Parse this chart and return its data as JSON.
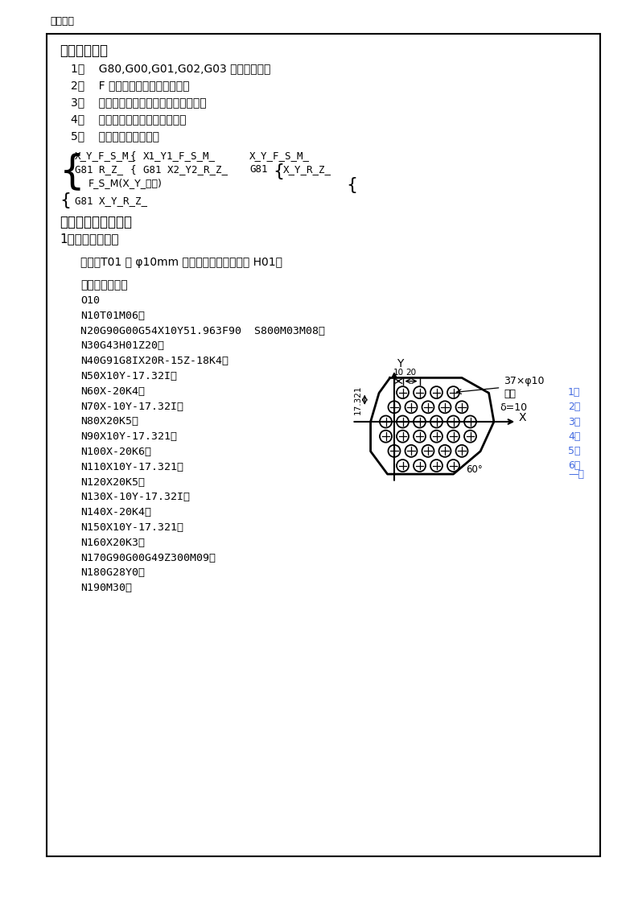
{
  "page_bg": "#ffffff",
  "border_color": "#000000",
  "text_color": "#000000",
  "blue_color": "#4169E1",
  "watermark": "欢迎阅读",
  "sec4_title": "四、注意事项",
  "items": [
    "1、    G80,G00,G01,G02,G03 取消固定循环",
    "2、    F 取消了固定循环也保留下来",
    "3、    主轴动作要事先明确，必须使转起来",
    "4、    加工电子仪时，倍率开关无效",
    "5、    第一个钻孔的加工："
  ],
  "sec5_title": "五、相关实践知识：",
  "sub1": "1、正确装夹工件",
  "tool_line": "刀具：T01 为 φ10mm 的钻头，长度补偿号为 H01。",
  "prog_intro": "程序编写如下：",
  "prog": [
    "O10",
    "N10T01M06；",
    "N20G90G00G54X10Y51.963F90  S800M03M08；",
    "N30G43H01Z20；",
    "N40G91G8IX20R-15Z-18K4；",
    "N50X10Y-17.32I；",
    "N60X-20K4；",
    "N70X-10Y-17.32I；",
    "N80X20K5；",
    "N90X10Y-17.321；",
    "N100X-20K6；",
    "N110X10Y-17.321；",
    "N120X20K5；",
    "N130X-10Y-17.32I；",
    "N140X-20K4；",
    "N150X10Y-17.321；",
    "N160X20K3；",
    "N170G90G00G49Z300M09；",
    "N180G28Y0；",
    "N190M30；"
  ],
  "row_labels": [
    "1排",
    "2排",
    "3排",
    "4排",
    "5排",
    "6排",
    "—排"
  ],
  "diag_37phi": "37×φ10",
  "diag_thru": "通孔",
  "diag_delta": "δ=10",
  "diag_60": "60°",
  "diag_Y": "Y",
  "diag_X": "X",
  "diag_1021": "10 20",
  "diag_17321": "17.321"
}
